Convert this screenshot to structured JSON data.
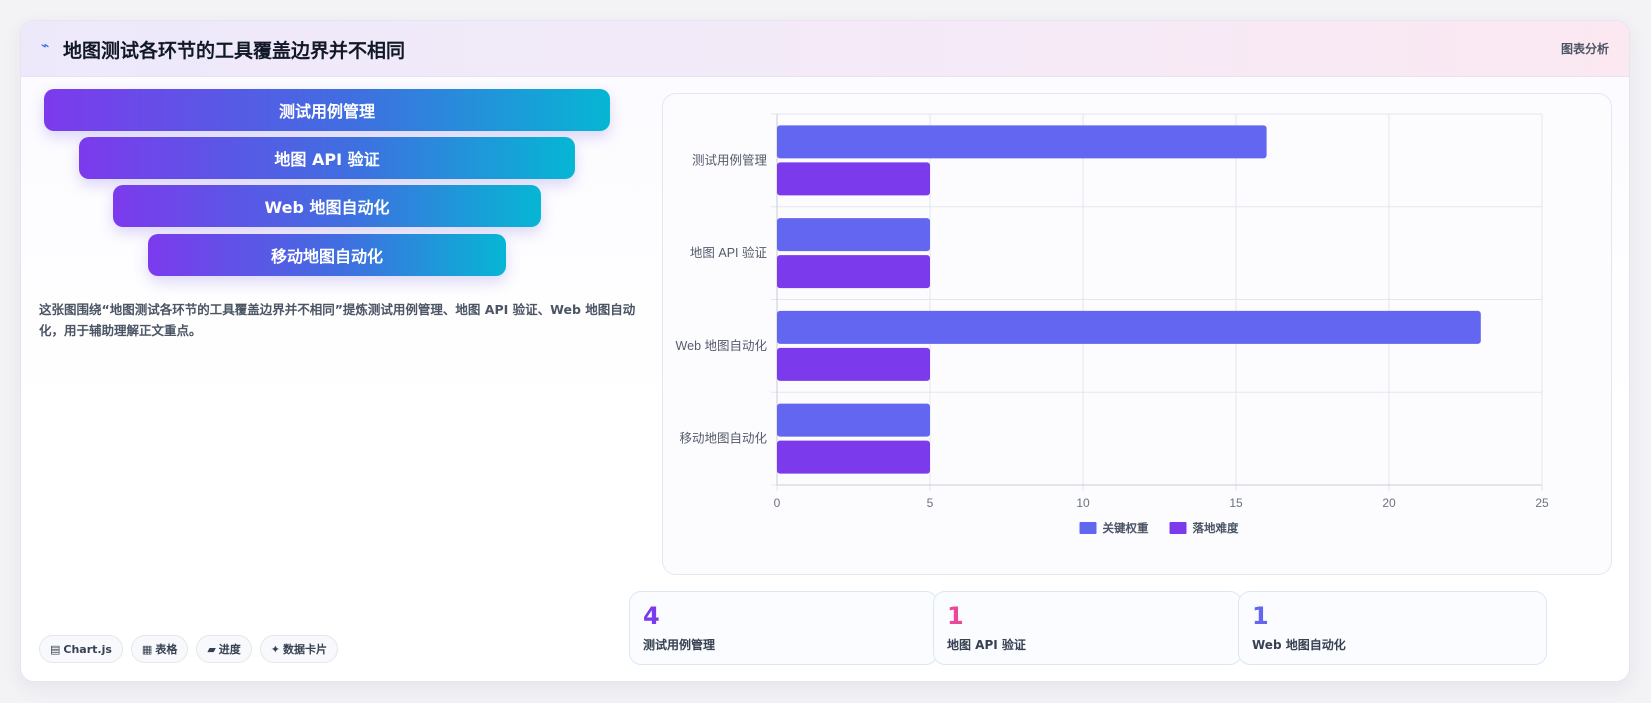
{
  "header": {
    "icon": "line-chart-icon",
    "title": "地图测试各环节的工具覆盖边界并不相同",
    "tag": "图表分析"
  },
  "funnel": {
    "items": [
      {
        "label": "测试用例管理"
      },
      {
        "label": "地图 API 验证"
      },
      {
        "label": "Web 地图自动化"
      },
      {
        "label": "移动地图自动化"
      }
    ]
  },
  "description": "这张图围绕“地图测试各环节的工具覆盖边界并不相同”提炼测试用例管理、地图 API 验证、Web 地图自动化，用于辅助理解正文重点。",
  "chips": [
    {
      "icon": "chart-icon",
      "glyph": "▤",
      "label": "Chart.js"
    },
    {
      "icon": "table-icon",
      "glyph": "▦",
      "label": "表格"
    },
    {
      "icon": "progress-icon",
      "glyph": "▰",
      "label": "进度"
    },
    {
      "icon": "sparkle-icon",
      "glyph": "✦",
      "label": "数据卡片"
    }
  ],
  "chart_data": {
    "type": "bar",
    "orientation": "horizontal",
    "categories": [
      "测试用例管理",
      "地图 API 验证",
      "Web 地图自动化",
      "移动地图自动化"
    ],
    "series": [
      {
        "name": "关键权重",
        "values": [
          16,
          5,
          23,
          5
        ],
        "color": "#6366f1"
      },
      {
        "name": "落地难度",
        "values": [
          5,
          5,
          5,
          5
        ],
        "color": "#7c3aed"
      }
    ],
    "xlim": [
      0,
      25
    ],
    "xticks": [
      0,
      5,
      10,
      15,
      20,
      25
    ],
    "grid": true,
    "legend": "bottom"
  },
  "stats": [
    {
      "value": "4",
      "label": "测试用例管理",
      "color": "#7c3aed"
    },
    {
      "value": "1",
      "label": "地图 API 验证",
      "color": "#ec4899"
    },
    {
      "value": "1",
      "label": "Web 地图自动化",
      "color": "#6366f1"
    }
  ]
}
